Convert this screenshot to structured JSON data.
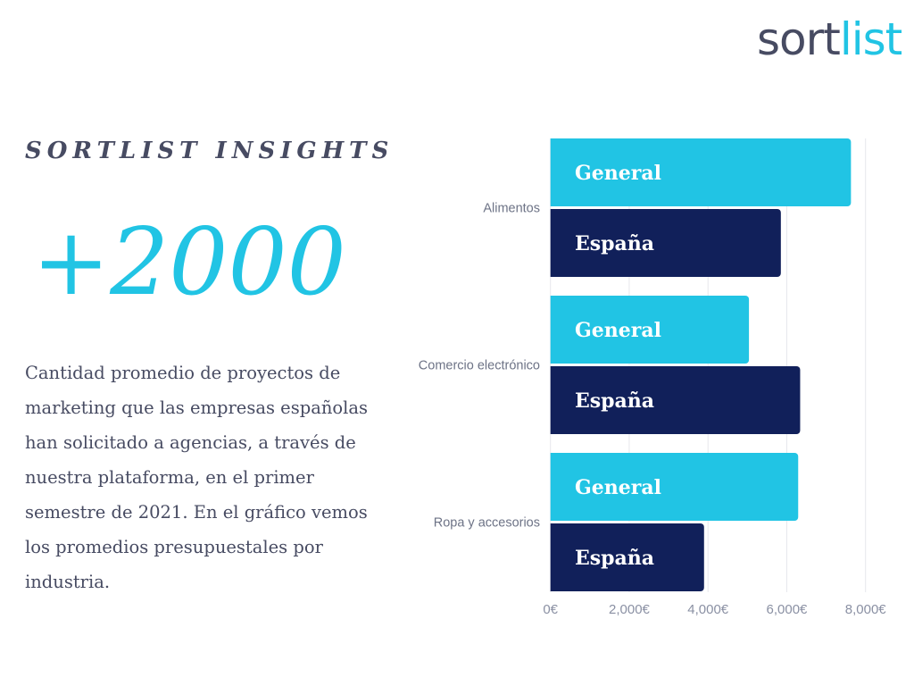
{
  "logo": {
    "part1": "sort",
    "part2": "list"
  },
  "kicker": "SORTLIST INSIGHTS",
  "headline": "+2000",
  "description": "Cantidad promedio de proyectos de marketing que las empresas españolas han solicitado a agencias, a través de nuestra plataforma, en el primer semestre de 2021. En el gráfico vemos los promedios presupuestales por industria.",
  "colors": {
    "general": "#21c4e4",
    "espana": "#11205a"
  },
  "chart_data": {
    "type": "bar",
    "orientation": "horizontal",
    "categories": [
      "Alimentos",
      "Comercio electrónico",
      "Ropa y accesorios"
    ],
    "series": [
      {
        "name": "General",
        "values": [
          7630,
          5040,
          6290
        ]
      },
      {
        "name": "España",
        "values": [
          5850,
          6340,
          3900
        ]
      }
    ],
    "xlim": [
      0,
      8000
    ],
    "xticks": [
      "0€",
      "2,000€",
      "4,000€",
      "6,000€",
      "8,000€"
    ],
    "xtick_values": [
      0,
      2000,
      4000,
      6000,
      8000
    ],
    "grid": true,
    "legend": "none (labels inside bars)"
  }
}
